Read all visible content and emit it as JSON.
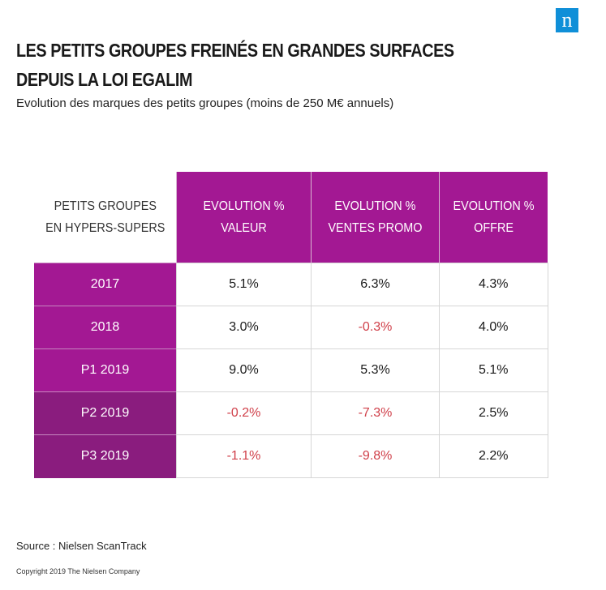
{
  "logo": {
    "text": "n"
  },
  "chart_data": {
    "type": "table",
    "title_lines": [
      "LES PETITS GROUPES FREINÉS EN GRANDES SURFACES",
      "DEPUIS LA LOI EGALIM"
    ],
    "subtitle": "Evolution des marques des petits groupes (moins de 250 M€ annuels)",
    "corner_header": [
      "PETITS GROUPES",
      "EN HYPERS-SUPERS"
    ],
    "columns": [
      [
        "EVOLUTION %",
        "VALEUR"
      ],
      [
        "EVOLUTION %",
        "VENTES PROMO"
      ],
      [
        "EVOLUTION %",
        "OFFRE"
      ]
    ],
    "rows": [
      {
        "label": "2017",
        "cells": [
          "5.1%",
          "6.3%",
          "4.3%"
        ],
        "negative": [
          false,
          false,
          false
        ]
      },
      {
        "label": "2018",
        "cells": [
          "3.0%",
          "-0.3%",
          "4.0%"
        ],
        "negative": [
          false,
          true,
          false
        ]
      },
      {
        "label": "P1 2019",
        "cells": [
          "9.0%",
          "5.3%",
          "5.1%"
        ],
        "negative": [
          false,
          false,
          false
        ]
      },
      {
        "label": "P2 2019",
        "cells": [
          "-0.2%",
          "-7.3%",
          "2.5%"
        ],
        "negative": [
          true,
          true,
          false
        ]
      },
      {
        "label": "P3 2019",
        "cells": [
          "-1.1%",
          "-9.8%",
          "2.2%"
        ],
        "negative": [
          true,
          true,
          false
        ]
      }
    ],
    "colors": {
      "header": "#a31893",
      "header_dark": "#8a1c7e",
      "negative": "#d0404a",
      "logo": "#0f8fd8"
    }
  },
  "footer": {
    "source": "Source : Nielsen ScanTrack",
    "copyright": "Copyright 2019 The Nielsen Company"
  }
}
